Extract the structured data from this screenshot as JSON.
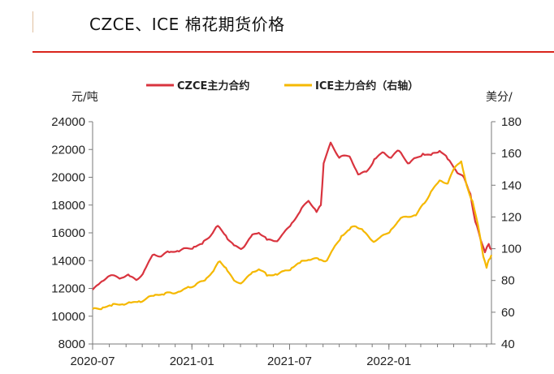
{
  "title": "CZCE、ICE 棉花期货价格",
  "chart_data": {
    "type": "line",
    "x_labels": [
      "2020-07",
      "2021-01",
      "2021-07",
      "2022-01"
    ],
    "left_axis": {
      "unit": "元/吨",
      "ticks": [
        8000,
        10000,
        12000,
        14000,
        16000,
        18000,
        20000,
        22000,
        24000
      ],
      "ylim": [
        8000,
        24000
      ]
    },
    "right_axis": {
      "unit": "美分/",
      "ticks": [
        40,
        60,
        80,
        100,
        120,
        140,
        160,
        180
      ],
      "ylim": [
        40,
        180
      ]
    },
    "x_range": [
      "2020-07-01",
      "2022-07-10"
    ],
    "grid": false,
    "legend_position": "top",
    "series": [
      {
        "name": "CZCE主力合约",
        "axis": "left",
        "color": "#d9343f",
        "points": [
          [
            "2020-07-01",
            11900
          ],
          [
            "2020-07-15",
            12400
          ],
          [
            "2020-08-01",
            12900
          ],
          [
            "2020-08-20",
            12700
          ],
          [
            "2020-09-05",
            13000
          ],
          [
            "2020-09-20",
            12600
          ],
          [
            "2020-10-05",
            13300
          ],
          [
            "2020-10-20",
            14400
          ],
          [
            "2020-11-05",
            14300
          ],
          [
            "2020-11-20",
            14600
          ],
          [
            "2020-12-05",
            14700
          ],
          [
            "2020-12-20",
            14900
          ],
          [
            "2021-01-05",
            15000
          ],
          [
            "2021-01-20",
            15200
          ],
          [
            "2021-02-05",
            15800
          ],
          [
            "2021-02-18",
            16500
          ],
          [
            "2021-03-05",
            15800
          ],
          [
            "2021-03-20",
            15100
          ],
          [
            "2021-04-05",
            14900
          ],
          [
            "2021-04-20",
            15700
          ],
          [
            "2021-05-05",
            16000
          ],
          [
            "2021-05-20",
            15500
          ],
          [
            "2021-06-05",
            15400
          ],
          [
            "2021-06-20",
            16000
          ],
          [
            "2021-07-05",
            16700
          ],
          [
            "2021-07-20",
            17500
          ],
          [
            "2021-08-05",
            18300
          ],
          [
            "2021-08-20",
            17500
          ],
          [
            "2021-08-28",
            18000
          ],
          [
            "2021-09-02",
            21000
          ],
          [
            "2021-09-15",
            22500
          ],
          [
            "2021-10-01",
            21400
          ],
          [
            "2021-10-20",
            21500
          ],
          [
            "2021-11-05",
            20200
          ],
          [
            "2021-11-20",
            20400
          ],
          [
            "2021-12-05",
            21300
          ],
          [
            "2021-12-20",
            21800
          ],
          [
            "2022-01-05",
            21400
          ],
          [
            "2022-01-20",
            21900
          ],
          [
            "2022-02-05",
            21000
          ],
          [
            "2022-02-20",
            21400
          ],
          [
            "2022-03-05",
            21700
          ],
          [
            "2022-03-20",
            21600
          ],
          [
            "2022-04-05",
            21900
          ],
          [
            "2022-04-20",
            21300
          ],
          [
            "2022-05-05",
            20500
          ],
          [
            "2022-05-20",
            20000
          ],
          [
            "2022-06-01",
            18800
          ],
          [
            "2022-06-10",
            16800
          ],
          [
            "2022-06-20",
            15500
          ],
          [
            "2022-06-28",
            14600
          ],
          [
            "2022-07-05",
            15200
          ],
          [
            "2022-07-10",
            14800
          ]
        ]
      },
      {
        "name": "ICE主力合约（右轴）",
        "axis": "right",
        "color": "#f5b800",
        "points": [
          [
            "2020-07-01",
            62
          ],
          [
            "2020-07-20",
            63
          ],
          [
            "2020-08-05",
            64
          ],
          [
            "2020-08-25",
            65
          ],
          [
            "2020-09-10",
            66
          ],
          [
            "2020-09-25",
            67
          ],
          [
            "2020-10-10",
            69
          ],
          [
            "2020-10-25",
            71
          ],
          [
            "2020-11-10",
            71
          ],
          [
            "2020-11-25",
            72
          ],
          [
            "2020-12-10",
            73
          ],
          [
            "2020-12-25",
            76
          ],
          [
            "2021-01-10",
            78
          ],
          [
            "2021-01-25",
            80
          ],
          [
            "2021-02-10",
            86
          ],
          [
            "2021-02-22",
            92
          ],
          [
            "2021-03-05",
            88
          ],
          [
            "2021-03-20",
            80
          ],
          [
            "2021-04-05",
            79
          ],
          [
            "2021-04-20",
            84
          ],
          [
            "2021-05-05",
            87
          ],
          [
            "2021-05-20",
            83
          ],
          [
            "2021-06-05",
            84
          ],
          [
            "2021-06-20",
            86
          ],
          [
            "2021-07-05",
            88
          ],
          [
            "2021-07-20",
            91
          ],
          [
            "2021-08-05",
            93
          ],
          [
            "2021-08-25",
            93
          ],
          [
            "2021-09-05",
            92
          ],
          [
            "2021-09-20",
            100
          ],
          [
            "2021-10-05",
            108
          ],
          [
            "2021-10-20",
            112
          ],
          [
            "2021-11-01",
            114
          ],
          [
            "2021-11-15",
            111
          ],
          [
            "2021-12-01",
            105
          ],
          [
            "2021-12-15",
            107
          ],
          [
            "2022-01-05",
            112
          ],
          [
            "2022-01-20",
            118
          ],
          [
            "2022-02-05",
            120
          ],
          [
            "2022-02-20",
            121
          ],
          [
            "2022-03-05",
            128
          ],
          [
            "2022-03-20",
            136
          ],
          [
            "2022-04-05",
            143
          ],
          [
            "2022-04-20",
            141
          ],
          [
            "2022-05-05",
            152
          ],
          [
            "2022-05-15",
            155
          ],
          [
            "2022-05-25",
            140
          ],
          [
            "2022-06-05",
            130
          ],
          [
            "2022-06-15",
            115
          ],
          [
            "2022-06-25",
            95
          ],
          [
            "2022-07-01",
            88
          ],
          [
            "2022-07-05",
            93
          ],
          [
            "2022-07-10",
            96
          ]
        ]
      }
    ]
  }
}
